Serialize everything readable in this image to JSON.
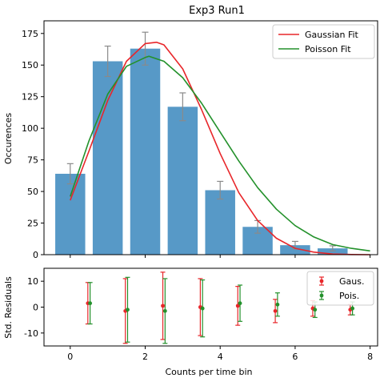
{
  "chart_data": [
    {
      "type": "bar",
      "title": "Exp3 Run1",
      "xlabel": "",
      "ylabel": "Occurences",
      "xlim": [
        -0.7,
        8.2
      ],
      "ylim": [
        0,
        185
      ],
      "yticks": [
        0,
        25,
        50,
        75,
        100,
        125,
        150,
        175
      ],
      "bar_color": "#5799c7",
      "errorbar_color": "#8a8a8a",
      "bars": [
        {
          "x": 0,
          "value": 64,
          "err": 8
        },
        {
          "x": 1,
          "value": 153,
          "err": 12
        },
        {
          "x": 2,
          "value": 163,
          "err": 13
        },
        {
          "x": 3,
          "value": 117,
          "err": 11
        },
        {
          "x": 4,
          "value": 51,
          "err": 7
        },
        {
          "x": 5,
          "value": 22,
          "err": 5
        },
        {
          "x": 6,
          "value": 7.5,
          "err": 3
        },
        {
          "x": 7,
          "value": 5,
          "err": 2
        }
      ],
      "curves": [
        {
          "name": "Gaussian Fit",
          "color": "#e8262a",
          "x": [
            0,
            0.5,
            1,
            1.5,
            2,
            2.3,
            2.5,
            3,
            3.5,
            4,
            4.5,
            5,
            5.5,
            6,
            6.5,
            7,
            7.5,
            8
          ],
          "y": [
            43,
            82,
            122,
            153,
            167,
            168,
            166,
            147,
            115,
            80,
            49,
            27,
            13,
            5,
            2,
            0.5,
            0.1,
            0
          ]
        },
        {
          "name": "Poisson Fit",
          "color": "#23912b",
          "x": [
            0,
            0.5,
            1,
            1.5,
            2,
            2.1,
            2.5,
            3,
            3.5,
            4,
            4.5,
            5,
            5.5,
            6,
            6.5,
            7,
            7.5,
            8
          ],
          "y": [
            46,
            90,
            127,
            149,
            156,
            157,
            153,
            140,
            120,
            97,
            74,
            53,
            36,
            23,
            14,
            8,
            5,
            3
          ]
        }
      ],
      "legend": {
        "position": "top-right",
        "entries": [
          "Gaussian Fit",
          "Poisson Fit"
        ]
      }
    },
    {
      "type": "scatter",
      "title": "",
      "xlabel": "Counts per time bin",
      "ylabel": "Std. Residuals",
      "xlim": [
        -0.7,
        8.2
      ],
      "ylim": [
        -15,
        15
      ],
      "xticks": [
        0,
        2,
        4,
        6,
        8
      ],
      "yticks": [
        -10,
        0,
        10
      ],
      "series": [
        {
          "name": "Gaus.",
          "color": "#e8262a",
          "x": [
            0.5,
            1.5,
            2.5,
            3.5,
            4.5,
            5.5,
            6.5,
            7.5
          ],
          "y": [
            1.5,
            -1.5,
            0.5,
            0,
            0.5,
            -1.5,
            -0.5,
            -1
          ],
          "err": [
            8,
            12.5,
            13,
            11,
            7.5,
            4.5,
            3,
            2
          ]
        },
        {
          "name": "Pois.",
          "color": "#23912b",
          "x": [
            0.5,
            1.5,
            2.5,
            3.5,
            4.5,
            5.5,
            6.5,
            7.5
          ],
          "y": [
            1.5,
            -1,
            -1.5,
            -0.5,
            1.5,
            1,
            -1,
            -0.5
          ],
          "err": [
            8,
            12.5,
            12.5,
            11,
            7,
            4.5,
            3,
            2.5
          ]
        }
      ],
      "legend": {
        "position": "top-right",
        "entries": [
          "Gaus.",
          "Pois."
        ]
      }
    }
  ]
}
